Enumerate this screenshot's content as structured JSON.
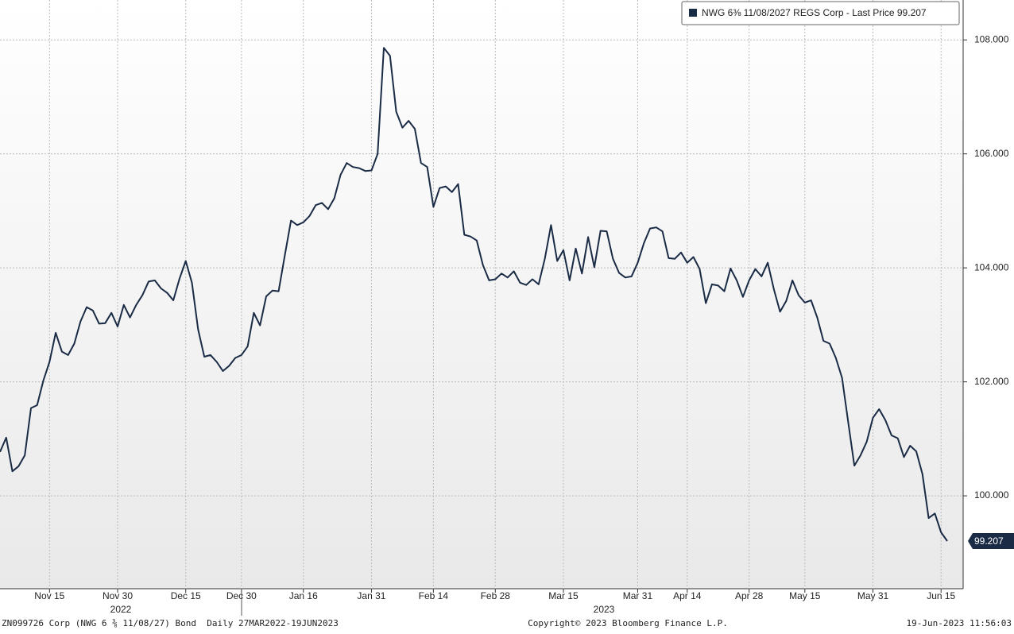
{
  "chart_data": {
    "type": "line",
    "categories": [
      null,
      null,
      null,
      null,
      null,
      null,
      null,
      null,
      "Nov 15",
      null,
      null,
      null,
      null,
      null,
      null,
      null,
      null,
      null,
      null,
      "Nov 30",
      null,
      null,
      null,
      null,
      null,
      null,
      null,
      null,
      null,
      null,
      "Dec 15",
      null,
      null,
      null,
      null,
      null,
      null,
      null,
      null,
      "Dec 30",
      null,
      null,
      null,
      null,
      null,
      null,
      null,
      null,
      null,
      "Jan 16",
      null,
      null,
      null,
      null,
      null,
      null,
      null,
      null,
      null,
      null,
      "Jan 31",
      null,
      null,
      null,
      null,
      null,
      null,
      null,
      null,
      null,
      "Feb 14",
      null,
      null,
      null,
      null,
      null,
      null,
      null,
      null,
      null,
      "Feb 28",
      null,
      null,
      null,
      null,
      null,
      null,
      null,
      null,
      null,
      null,
      "Mar 15",
      null,
      null,
      null,
      null,
      null,
      null,
      null,
      null,
      null,
      null,
      null,
      "Mar 31",
      null,
      null,
      null,
      null,
      null,
      null,
      null,
      "Apr 14",
      null,
      null,
      null,
      null,
      null,
      null,
      null,
      null,
      null,
      "Apr 28",
      null,
      null,
      null,
      null,
      null,
      null,
      null,
      null,
      "May 15",
      null,
      null,
      null,
      null,
      null,
      null,
      null,
      null,
      null,
      null,
      "May 31",
      null,
      null,
      null,
      null,
      null,
      null,
      null,
      null,
      null,
      null,
      "Jun 15",
      null
    ],
    "year_labels": [
      "2022",
      "2023"
    ],
    "series": [
      {
        "name": "NWG 6⅜  11/08/2027 REGS Corp - Last Price 99.207",
        "color": "#1a2b45",
        "values": [
          100.77,
          101.02,
          100.43,
          100.52,
          100.71,
          101.54,
          101.59,
          102.02,
          102.35,
          102.86,
          102.53,
          102.47,
          102.67,
          103.06,
          103.31,
          103.25,
          103.02,
          103.03,
          103.21,
          102.97,
          103.35,
          103.13,
          103.35,
          103.52,
          103.76,
          103.78,
          103.64,
          103.56,
          103.43,
          103.81,
          104.12,
          103.74,
          102.92,
          102.44,
          102.47,
          102.35,
          102.19,
          102.28,
          102.42,
          102.47,
          102.62,
          103.21,
          102.99,
          103.5,
          103.6,
          103.59,
          104.22,
          104.83,
          104.75,
          104.8,
          104.91,
          105.1,
          105.14,
          105.03,
          105.22,
          105.63,
          105.84,
          105.77,
          105.75,
          105.7,
          105.71,
          106.0,
          107.86,
          107.72,
          106.74,
          106.46,
          106.58,
          106.44,
          105.84,
          105.77,
          105.07,
          105.4,
          105.43,
          105.33,
          105.47,
          104.58,
          104.55,
          104.48,
          104.05,
          103.78,
          103.8,
          103.9,
          103.83,
          103.94,
          103.74,
          103.7,
          103.8,
          103.71,
          104.16,
          104.75,
          104.12,
          104.31,
          103.78,
          104.34,
          103.9,
          104.54,
          104.01,
          104.65,
          104.64,
          104.16,
          103.91,
          103.83,
          103.85,
          104.09,
          104.43,
          104.69,
          104.71,
          104.64,
          104.17,
          104.16,
          104.27,
          104.09,
          104.19,
          103.98,
          103.38,
          103.71,
          103.69,
          103.59,
          103.99,
          103.78,
          103.49,
          103.78,
          103.98,
          103.85,
          104.09,
          103.62,
          103.23,
          103.42,
          103.78,
          103.52,
          103.39,
          103.43,
          103.13,
          102.72,
          102.67,
          102.42,
          102.07,
          101.3,
          100.53,
          100.71,
          100.95,
          101.37,
          101.52,
          101.33,
          101.06,
          101.01,
          100.68,
          100.88,
          100.78,
          100.38,
          99.61,
          99.69,
          99.36,
          99.207
        ],
        "value_labels": [
          null,
          null,
          null,
          null,
          null,
          null,
          null,
          null,
          null,
          null,
          null,
          null,
          null,
          null,
          null,
          null,
          null,
          null,
          null,
          null,
          null,
          null,
          null,
          null,
          null,
          null,
          null,
          null,
          null,
          null,
          null,
          null,
          null,
          null,
          null,
          null,
          null,
          null,
          null,
          null,
          null,
          null,
          null,
          null,
          null,
          null,
          null,
          null,
          null,
          null,
          null,
          null,
          null,
          null,
          null,
          null,
          null,
          null,
          null,
          null,
          null,
          null,
          null,
          null,
          null,
          null,
          null,
          null,
          null,
          null,
          null,
          null,
          null,
          null,
          null,
          null,
          null,
          null,
          null,
          null,
          null,
          null,
          null,
          null,
          null,
          null,
          null,
          null,
          null,
          null,
          null,
          null,
          null,
          null,
          null,
          null,
          null,
          null,
          null,
          null,
          null,
          null,
          null,
          null,
          null,
          null,
          null,
          null,
          null,
          null,
          null,
          null,
          null,
          null,
          null,
          null,
          null,
          null,
          null,
          null,
          null,
          null,
          null,
          null,
          null,
          null,
          null,
          null,
          null,
          null,
          null,
          null,
          null,
          null,
          null,
          null,
          null,
          null,
          null,
          null,
          null,
          null,
          null,
          null,
          null,
          null,
          null,
          null,
          null,
          null,
          null,
          null,
          null,
          "99.207"
        ]
      }
    ],
    "ylim": [
      98.37,
      108.7
    ],
    "yticks": [
      {
        "value": 100,
        "label": "100.000"
      },
      {
        "value": 102,
        "label": "102.000"
      },
      {
        "value": 104,
        "label": "104.000"
      },
      {
        "value": 106,
        "label": "106.000"
      },
      {
        "value": 108,
        "label": "108.000"
      }
    ],
    "grid": true,
    "footer": {
      "left": "ZN099726 Corp (NWG 6 ⅜ 11/08/27) Bond  Daily 27MAR2022-19JUN2023",
      "center": "Copyright© 2023 Bloomberg Finance L.P.",
      "right": "19-Jun-2023 11:56:03"
    }
  }
}
